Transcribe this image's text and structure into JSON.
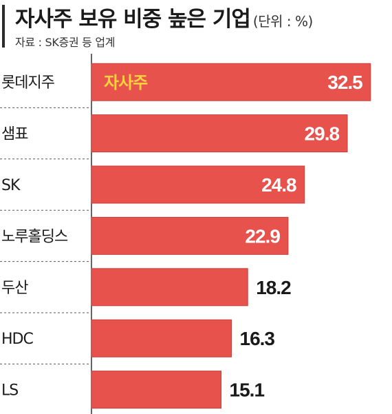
{
  "chart_data": {
    "type": "bar",
    "orientation": "horizontal",
    "title": "자사주 보유 비중 높은 기업",
    "unit": "(단위 : %)",
    "source": "자료 : SK증권 등 업계",
    "categories": [
      "롯데지주",
      "샘표",
      "SK",
      "노루홀딩스",
      "두산",
      "HDC",
      "LS"
    ],
    "values": [
      32.5,
      29.8,
      24.8,
      22.9,
      18.2,
      16.3,
      15.1
    ],
    "series": [
      {
        "name": "자사주",
        "values": [
          32.5,
          29.8,
          24.8,
          22.9,
          18.2,
          16.3,
          15.1
        ]
      }
    ],
    "xlim": [
      0,
      33
    ],
    "bar_color": "#e8524d",
    "bar_edge_color": "#c93f3a",
    "label_color": "#ffd23f",
    "grid": false
  }
}
